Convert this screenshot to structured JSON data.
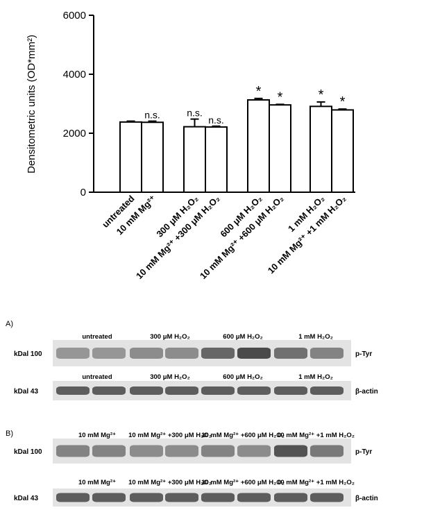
{
  "chart_data": {
    "type": "bar",
    "ylabel": "Densitometric units (OD*mm²)",
    "ylim": [
      0,
      6000
    ],
    "yticks": [
      0,
      2000,
      4000,
      6000
    ],
    "groups": [
      {
        "bars": [
          {
            "label": "untreated",
            "value": 2380,
            "error": 30,
            "annotation": ""
          },
          {
            "label": "10 mM Mg²⁺",
            "value": 2370,
            "error": 40,
            "annotation": "n.s."
          }
        ]
      },
      {
        "bars": [
          {
            "label": "300 μM H₂O₂",
            "value": 2220,
            "error": 260,
            "annotation": "n.s."
          },
          {
            "label": "10 mM Mg²⁺ +300 μM H₂O₂",
            "value": 2210,
            "error": 30,
            "annotation": "n.s."
          }
        ]
      },
      {
        "bars": [
          {
            "label": "600 μM H₂O₂",
            "value": 3130,
            "error": 50,
            "annotation": "*"
          },
          {
            "label": "10 mM Mg²⁺ +600 μM H₂O₂",
            "value": 2960,
            "error": 20,
            "annotation": "*"
          }
        ]
      },
      {
        "bars": [
          {
            "label": "1 mM H₂O₂",
            "value": 2910,
            "error": 150,
            "annotation": "*"
          },
          {
            "label": "10 mM Mg²⁺ +1 mM H₂O₂",
            "value": 2790,
            "error": 30,
            "annotation": "*"
          }
        ]
      }
    ]
  },
  "blots": {
    "panel_a": {
      "label": "A)",
      "ptyr": {
        "kda": "kDal 100",
        "name": "p-Tyr",
        "headers": [
          "untreated",
          "300 μM H₂O₂",
          "600 μM H₂O₂",
          "1 mM H₂O₂"
        ],
        "intensity": [
          0.45,
          0.45,
          0.5,
          0.5,
          0.7,
          0.85,
          0.65,
          0.55
        ]
      },
      "actin": {
        "kda": "kDal 43",
        "name": "β-actin",
        "headers": [
          "untreated",
          "300 μM H₂O₂",
          "600 μM H₂O₂",
          "1 mM H₂O₂"
        ],
        "intensity": [
          0.75,
          0.75,
          0.75,
          0.75,
          0.75,
          0.75,
          0.75,
          0.75
        ]
      }
    },
    "panel_b": {
      "label": "B)",
      "ptyr": {
        "kda": "kDal 100",
        "name": "p-Tyr",
        "headers": [
          "10 mM Mg²⁺",
          "10 mM Mg²⁺ +300 μM H₂O₂",
          "10 mM Mg²⁺ +600 μM H₂O₂",
          "10 mM Mg²⁺ +1 mM H₂O₂"
        ],
        "intensity": [
          0.55,
          0.55,
          0.5,
          0.5,
          0.55,
          0.5,
          0.8,
          0.6
        ]
      },
      "actin": {
        "kda": "kDal 43",
        "name": "β-actin",
        "headers": [
          "10 mM Mg²⁺",
          "10 mM Mg²⁺ +300 μM H₂O₂",
          "10 mM Mg²⁺ +600 μM H₂O₂",
          "10 mM Mg²⁺ +1 mM H₂O₂"
        ],
        "intensity": [
          0.75,
          0.75,
          0.75,
          0.75,
          0.75,
          0.75,
          0.75,
          0.75
        ]
      }
    }
  }
}
